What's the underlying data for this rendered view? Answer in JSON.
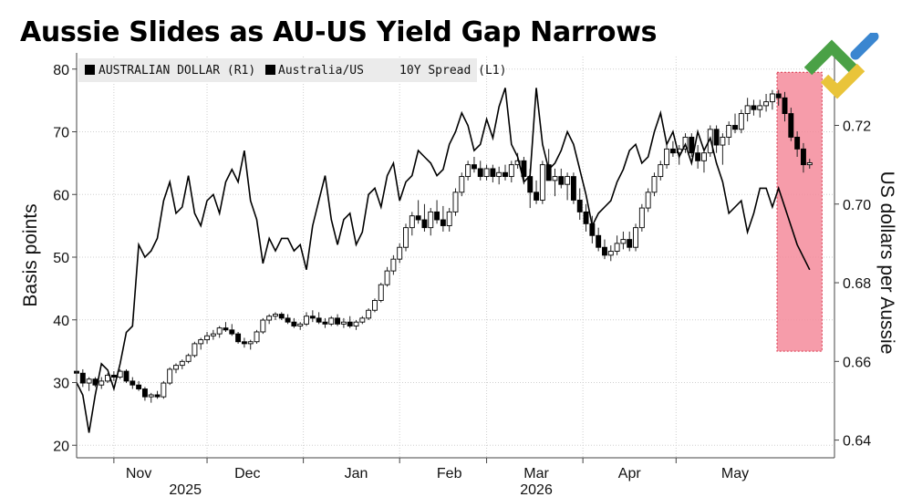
{
  "title": "Aussie Slides as AU-US Yield Gap Narrows",
  "chart_data": {
    "type": "line",
    "title": "Aussie Slides as AU-US Yield Gap Narrows",
    "ylabel_left": "Basis points",
    "ylabel_right": "US dollars per Aussie",
    "y_left_range": [
      18,
      82
    ],
    "y_left_ticks": [
      "20",
      "30",
      "40",
      "50",
      "60",
      "70",
      "80"
    ],
    "y_right_range": [
      0.6355,
      0.7375
    ],
    "y_right_ticks": [
      "0.64",
      "0.66",
      "0.68",
      "0.70",
      "0.72"
    ],
    "x_ticks": [
      "Nov",
      "Dec",
      "Jan",
      "Feb",
      "Mar",
      "Apr",
      "May"
    ],
    "x_year_labels": [
      "2025",
      "2026"
    ],
    "grid": true,
    "legend": [
      {
        "label": "AUSTRALIAN DOLLAR (R1)",
        "color": "#000000"
      },
      {
        "label": "Australia/US     10Y Spread (L1)",
        "color": "#000000"
      }
    ],
    "highlight": {
      "from_day": 225.5,
      "to_day": 240,
      "y_left_from": 35,
      "y_left_to": 79.5,
      "color": "#f48b9b"
    },
    "series": [
      {
        "name": "Australia/US     10Y Spread (L1)",
        "axis": "left",
        "x": [
          0,
          2,
          4,
          6,
          8,
          10,
          12,
          14,
          16,
          18,
          20,
          22,
          24,
          26,
          28,
          30,
          32,
          34,
          36,
          38,
          40,
          42,
          44,
          46,
          48,
          50,
          52,
          54,
          56,
          58,
          60,
          62,
          64,
          66,
          68,
          70,
          72,
          74,
          76,
          78,
          80,
          82,
          84,
          86,
          88,
          90,
          92,
          94,
          96,
          98,
          100,
          102,
          104,
          106,
          108,
          110,
          112,
          114,
          116,
          118,
          120,
          122,
          124,
          126,
          128,
          130,
          132,
          134,
          136,
          138,
          140,
          142,
          144,
          146,
          148,
          150,
          152,
          154,
          156,
          158,
          160,
          162,
          164,
          166,
          168,
          170,
          172,
          174,
          176,
          178,
          180,
          182,
          184,
          186,
          188,
          190,
          192,
          194,
          196,
          198,
          200,
          202,
          204,
          206,
          208,
          210,
          212,
          214,
          216,
          218,
          220,
          222,
          224,
          226,
          228,
          230,
          232,
          236
        ],
        "values": [
          30,
          28,
          22,
          28,
          33,
          32,
          29,
          33,
          38,
          39,
          52,
          50,
          51,
          53,
          59,
          62,
          57,
          58,
          63,
          57,
          55,
          59,
          60,
          57,
          62,
          64,
          62,
          67,
          59,
          56,
          49,
          53,
          51,
          53,
          53,
          51,
          52,
          48,
          55,
          59,
          63,
          56,
          52,
          56,
          57,
          52,
          54,
          60,
          61,
          58,
          63,
          65,
          59,
          62,
          63,
          67,
          66,
          65,
          63,
          64,
          68,
          70,
          73,
          71,
          67,
          68,
          72,
          69,
          74,
          77,
          68,
          66,
          62,
          63,
          77,
          68,
          64,
          65,
          67,
          70,
          68,
          64,
          60,
          55,
          57,
          58,
          59,
          62,
          64,
          67,
          68,
          65,
          66,
          70,
          73,
          68,
          70,
          66,
          68,
          65,
          70,
          67,
          69,
          65,
          62,
          57,
          58,
          59,
          54,
          57,
          61,
          61,
          58,
          61,
          58,
          55,
          52,
          48
        ]
      },
      {
        "name": "AUSTRALIAN DOLLAR (R1)",
        "axis": "right",
        "candles": [
          [
            0,
            0.6575,
            0.6595,
            0.6555,
            0.657
          ],
          [
            2,
            0.657,
            0.658,
            0.6535,
            0.6545
          ],
          [
            4,
            0.6545,
            0.656,
            0.6525,
            0.6555
          ],
          [
            6,
            0.6555,
            0.656,
            0.6535,
            0.654
          ],
          [
            8,
            0.654,
            0.656,
            0.653,
            0.655
          ],
          [
            10,
            0.655,
            0.657,
            0.6545,
            0.6565
          ],
          [
            12,
            0.6565,
            0.6575,
            0.655,
            0.656
          ],
          [
            14,
            0.656,
            0.658,
            0.6555,
            0.6575
          ],
          [
            16,
            0.6575,
            0.658,
            0.6545,
            0.655
          ],
          [
            18,
            0.655,
            0.656,
            0.653,
            0.654
          ],
          [
            20,
            0.654,
            0.655,
            0.6525,
            0.653
          ],
          [
            22,
            0.653,
            0.6535,
            0.65,
            0.651
          ],
          [
            24,
            0.651,
            0.652,
            0.6495,
            0.6515
          ],
          [
            26,
            0.6515,
            0.6525,
            0.6505,
            0.651
          ],
          [
            28,
            0.651,
            0.655,
            0.6505,
            0.6545
          ],
          [
            30,
            0.6545,
            0.6585,
            0.654,
            0.658
          ],
          [
            32,
            0.658,
            0.6595,
            0.657,
            0.659
          ],
          [
            34,
            0.659,
            0.6605,
            0.658,
            0.66
          ],
          [
            36,
            0.66,
            0.662,
            0.6595,
            0.6615
          ],
          [
            38,
            0.6615,
            0.665,
            0.661,
            0.6645
          ],
          [
            40,
            0.6645,
            0.666,
            0.663,
            0.6655
          ],
          [
            42,
            0.6655,
            0.6675,
            0.6645,
            0.6665
          ],
          [
            44,
            0.6665,
            0.668,
            0.6655,
            0.667
          ],
          [
            46,
            0.667,
            0.669,
            0.666,
            0.6685
          ],
          [
            48,
            0.6685,
            0.67,
            0.6675,
            0.668
          ],
          [
            50,
            0.668,
            0.6695,
            0.6665,
            0.667
          ],
          [
            52,
            0.667,
            0.6675,
            0.6645,
            0.665
          ],
          [
            54,
            0.665,
            0.666,
            0.6635,
            0.6645
          ],
          [
            56,
            0.6645,
            0.6655,
            0.663,
            0.665
          ],
          [
            58,
            0.665,
            0.668,
            0.6645,
            0.6675
          ],
          [
            60,
            0.6675,
            0.671,
            0.667,
            0.6705
          ],
          [
            62,
            0.6705,
            0.672,
            0.6695,
            0.6715
          ],
          [
            64,
            0.6715,
            0.6725,
            0.6705,
            0.672
          ],
          [
            66,
            0.672,
            0.6725,
            0.6705,
            0.671
          ],
          [
            68,
            0.671,
            0.672,
            0.6695,
            0.67
          ],
          [
            70,
            0.67,
            0.671,
            0.6685,
            0.669
          ],
          [
            72,
            0.669,
            0.67,
            0.668,
            0.6695
          ],
          [
            74,
            0.6695,
            0.6725,
            0.669,
            0.6715
          ],
          [
            76,
            0.6715,
            0.673,
            0.67,
            0.671
          ],
          [
            78,
            0.671,
            0.6725,
            0.6695,
            0.67
          ],
          [
            80,
            0.67,
            0.671,
            0.6685,
            0.6695
          ],
          [
            82,
            0.6695,
            0.6715,
            0.669,
            0.671
          ],
          [
            84,
            0.671,
            0.672,
            0.669,
            0.6695
          ],
          [
            86,
            0.6695,
            0.671,
            0.6685,
            0.67
          ],
          [
            88,
            0.67,
            0.6715,
            0.6685,
            0.669
          ],
          [
            90,
            0.669,
            0.6705,
            0.668,
            0.67
          ],
          [
            92,
            0.67,
            0.6715,
            0.6695,
            0.671
          ],
          [
            94,
            0.671,
            0.6735,
            0.6705,
            0.673
          ],
          [
            96,
            0.673,
            0.676,
            0.6725,
            0.6755
          ],
          [
            98,
            0.6755,
            0.68,
            0.675,
            0.6795
          ],
          [
            100,
            0.6795,
            0.684,
            0.679,
            0.683
          ],
          [
            102,
            0.683,
            0.687,
            0.682,
            0.686
          ],
          [
            104,
            0.686,
            0.69,
            0.685,
            0.689
          ],
          [
            106,
            0.689,
            0.695,
            0.688,
            0.694
          ],
          [
            108,
            0.694,
            0.698,
            0.692,
            0.697
          ],
          [
            110,
            0.697,
            0.701,
            0.695,
            0.696
          ],
          [
            112,
            0.696,
            0.7,
            0.693,
            0.694
          ],
          [
            114,
            0.694,
            0.699,
            0.692,
            0.698
          ],
          [
            116,
            0.698,
            0.701,
            0.695,
            0.696
          ],
          [
            118,
            0.696,
            0.6995,
            0.693,
            0.6945
          ],
          [
            120,
            0.6945,
            0.699,
            0.693,
            0.698
          ],
          [
            122,
            0.698,
            0.704,
            0.697,
            0.703
          ],
          [
            124,
            0.703,
            0.708,
            0.702,
            0.707
          ],
          [
            126,
            0.707,
            0.711,
            0.706,
            0.71
          ],
          [
            128,
            0.71,
            0.712,
            0.708,
            0.709
          ],
          [
            130,
            0.709,
            0.711,
            0.706,
            0.707
          ],
          [
            132,
            0.707,
            0.71,
            0.706,
            0.709
          ],
          [
            134,
            0.709,
            0.71,
            0.7055,
            0.707
          ],
          [
            136,
            0.707,
            0.7095,
            0.705,
            0.708
          ],
          [
            138,
            0.708,
            0.71,
            0.706,
            0.707
          ],
          [
            140,
            0.707,
            0.711,
            0.7055,
            0.71
          ],
          [
            142,
            0.71,
            0.713,
            0.709,
            0.711
          ],
          [
            144,
            0.711,
            0.712,
            0.705,
            0.707
          ],
          [
            146,
            0.707,
            0.709,
            0.699,
            0.703
          ],
          [
            148,
            0.703,
            0.706,
            0.7,
            0.701
          ],
          [
            150,
            0.701,
            0.711,
            0.7,
            0.71
          ],
          [
            152,
            0.71,
            0.714,
            0.708,
            0.706
          ],
          [
            154,
            0.706,
            0.709,
            0.702,
            0.707
          ],
          [
            156,
            0.707,
            0.709,
            0.704,
            0.705
          ],
          [
            158,
            0.705,
            0.708,
            0.701,
            0.707
          ],
          [
            160,
            0.707,
            0.708,
            0.7,
            0.701
          ],
          [
            162,
            0.701,
            0.704,
            0.696,
            0.698
          ],
          [
            164,
            0.698,
            0.7,
            0.693,
            0.695
          ],
          [
            166,
            0.695,
            0.697,
            0.69,
            0.692
          ],
          [
            168,
            0.692,
            0.694,
            0.688,
            0.689
          ],
          [
            170,
            0.689,
            0.691,
            0.686,
            0.687
          ],
          [
            172,
            0.687,
            0.6895,
            0.6855,
            0.688
          ],
          [
            174,
            0.688,
            0.692,
            0.687,
            0.69
          ],
          [
            176,
            0.69,
            0.693,
            0.6885,
            0.691
          ],
          [
            178,
            0.691,
            0.693,
            0.688,
            0.689
          ],
          [
            180,
            0.689,
            0.695,
            0.688,
            0.694
          ],
          [
            182,
            0.694,
            0.7,
            0.693,
            0.699
          ],
          [
            184,
            0.699,
            0.704,
            0.698,
            0.703
          ],
          [
            186,
            0.703,
            0.708,
            0.702,
            0.707
          ],
          [
            188,
            0.707,
            0.711,
            0.706,
            0.71
          ],
          [
            190,
            0.71,
            0.715,
            0.709,
            0.714
          ],
          [
            192,
            0.714,
            0.716,
            0.712,
            0.713
          ],
          [
            194,
            0.713,
            0.715,
            0.71,
            0.714
          ],
          [
            196,
            0.714,
            0.718,
            0.713,
            0.717
          ],
          [
            198,
            0.717,
            0.718,
            0.712,
            0.713
          ],
          [
            200,
            0.713,
            0.715,
            0.709,
            0.711
          ],
          [
            202,
            0.711,
            0.714,
            0.708,
            0.713
          ],
          [
            204,
            0.713,
            0.72,
            0.712,
            0.719
          ],
          [
            206,
            0.719,
            0.72,
            0.713,
            0.715
          ],
          [
            208,
            0.715,
            0.718,
            0.71,
            0.717
          ],
          [
            210,
            0.717,
            0.721,
            0.715,
            0.72
          ],
          [
            212,
            0.72,
            0.723,
            0.718,
            0.719
          ],
          [
            214,
            0.719,
            0.724,
            0.718,
            0.723
          ],
          [
            216,
            0.723,
            0.727,
            0.721,
            0.725
          ],
          [
            218,
            0.725,
            0.7265,
            0.7225,
            0.724
          ],
          [
            220,
            0.724,
            0.7265,
            0.722,
            0.725
          ],
          [
            222,
            0.725,
            0.728,
            0.7235,
            0.726
          ],
          [
            224,
            0.726,
            0.729,
            0.724,
            0.728
          ],
          [
            226,
            0.728,
            0.729,
            0.725,
            0.727
          ],
          [
            228,
            0.727,
            0.7285,
            0.721,
            0.723
          ],
          [
            230,
            0.723,
            0.7245,
            0.716,
            0.717
          ],
          [
            232,
            0.717,
            0.7185,
            0.712,
            0.714
          ],
          [
            234,
            0.714,
            0.7155,
            0.708,
            0.71
          ],
          [
            236,
            0.71,
            0.7115,
            0.709,
            0.7105
          ]
        ]
      }
    ]
  },
  "logo": {
    "colors": [
      "#4aa146",
      "#e9c43a",
      "#3a86d0"
    ]
  }
}
